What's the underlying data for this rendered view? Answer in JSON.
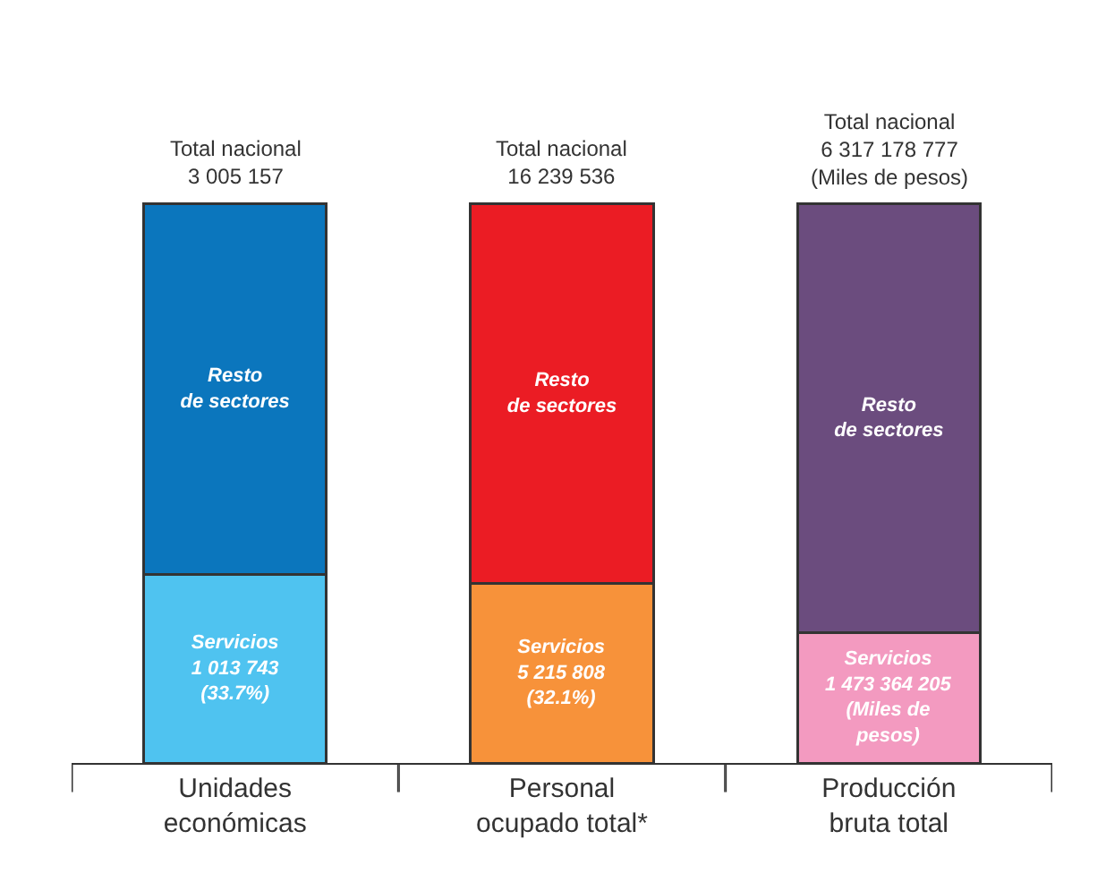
{
  "chart_data": [
    {
      "type": "bar",
      "stacked": true,
      "categories": [
        "Unidades\neconómicas"
      ],
      "series": [
        {
          "colors": [
            "#4fc3f0"
          ],
          "values": [
            1013743
          ],
          "value_labels": [
            "Servicios\n1 013 743\n(33.7%)"
          ]
        },
        {
          "colors": [
            "#0b76bd"
          ],
          "values": [
            1991414
          ],
          "value_labels": [
            "Resto\nde sectores"
          ]
        }
      ],
      "totals": [
        "Total nacional\n3 005 157"
      ]
    },
    {
      "type": "bar",
      "stacked": true,
      "categories": [
        "Personal\nocupado total*"
      ],
      "series": [
        {
          "colors": [
            "#f7923a"
          ],
          "values": [
            5215808
          ],
          "value_labels": [
            "Servicios\n5 215 808\n(32.1%)"
          ]
        },
        {
          "colors": [
            "#eb1c24"
          ],
          "values": [
            11023728
          ],
          "value_labels": [
            "Resto\nde sectores"
          ]
        }
      ],
      "totals": [
        "Total nacional\n16 239 536"
      ]
    },
    {
      "type": "bar",
      "stacked": true,
      "categories": [
        "Producción\nbruta total"
      ],
      "series": [
        {
          "colors": [
            "#f39ac0"
          ],
          "values": [
            1473364205
          ],
          "value_labels": [
            "Servicios\n1 473 364 205\n(Miles de\npesos)"
          ]
        },
        {
          "colors": [
            "#6b4c7e"
          ],
          "values": [
            4843814572
          ],
          "value_labels": [
            "Resto\nde sectores"
          ]
        }
      ],
      "totals": [
        "Total nacional\n6 317 178 777\n(Miles de pesos)"
      ]
    }
  ]
}
